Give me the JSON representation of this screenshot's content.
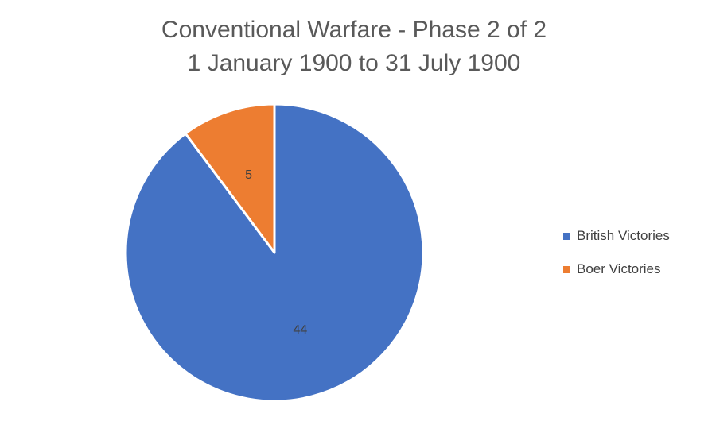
{
  "chart_data": {
    "type": "pie",
    "title": "Conventional Warfare - Phase 2 of 2",
    "subtitle": "1 January 1900 to 31 July 1900",
    "slices": [
      {
        "name": "British Victories",
        "value": 44,
        "color": "#4472C4"
      },
      {
        "name": "Boer Victories",
        "value": 5,
        "color": "#ED7D31"
      }
    ],
    "legend_position": "right",
    "data_labels": true
  }
}
